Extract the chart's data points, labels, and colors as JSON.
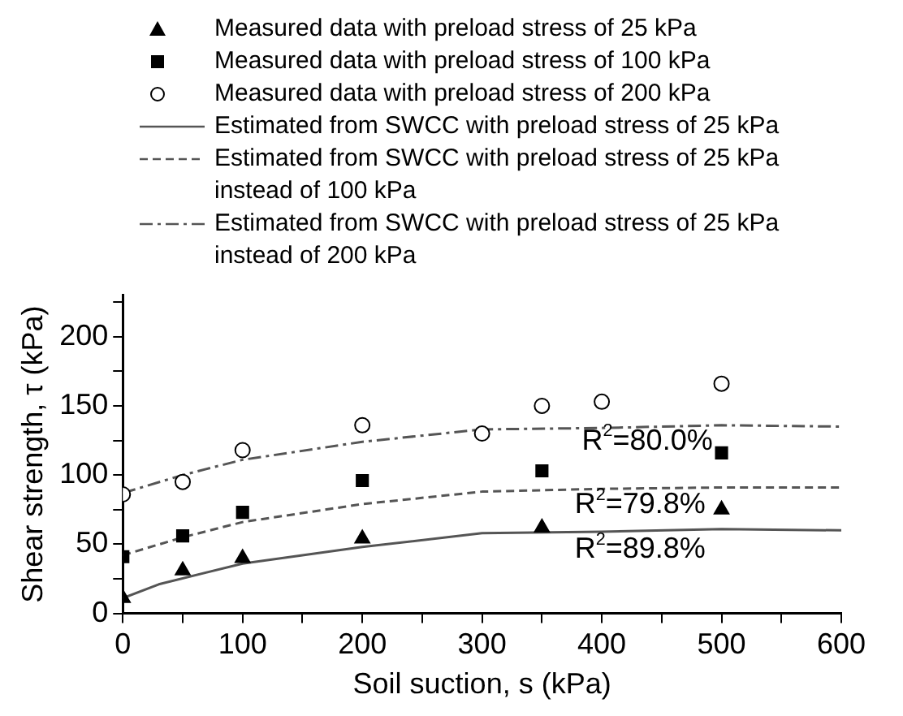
{
  "chart_data": {
    "type": "line",
    "xlabel": "Soil suction, s (kPa)",
    "ylabel": "Shear strength, τ (kPa)",
    "xlim": [
      0,
      600
    ],
    "xticks": [
      0,
      {
        "value": 50,
        "label": null
      },
      100,
      {
        "value": 150,
        "label": null
      },
      200,
      {
        "value": 250,
        "label": null
      },
      300,
      {
        "value": 350,
        "label": null
      },
      400,
      {
        "value": 450,
        "label": null
      },
      500,
      {
        "value": 550,
        "label": null
      },
      600
    ],
    "ylim": [
      0,
      230
    ],
    "yticks": [
      0,
      {
        "value": 25,
        "label": null
      },
      50,
      {
        "value": 75,
        "label": null
      },
      100,
      {
        "value": 125,
        "label": null
      },
      150,
      {
        "value": 175,
        "label": null
      },
      200,
      {
        "value": 225,
        "label": null
      }
    ],
    "grid": false,
    "legend": "top",
    "series": [
      {
        "name": "Measured data with preload stress of 25 kPa",
        "type": "scatter",
        "marker": "triangle",
        "color": "#000000",
        "x": [
          0,
          50,
          100,
          200,
          350,
          500
        ],
        "values": [
          11,
          31,
          40,
          54,
          62,
          75
        ]
      },
      {
        "name": "Measured data with preload stress of 100 kPa",
        "type": "scatter",
        "marker": "square",
        "color": "#000000",
        "x": [
          0,
          50,
          100,
          200,
          350,
          500
        ],
        "values": [
          41,
          56,
          73,
          96,
          103,
          116
        ]
      },
      {
        "name": "Measured data with preload stress of 200 kPa",
        "type": "scatter",
        "marker": "circle",
        "color": "#000000",
        "x": [
          0,
          50,
          100,
          200,
          300,
          350,
          400,
          500
        ],
        "values": [
          86,
          95,
          118,
          136,
          130,
          150,
          153,
          166
        ]
      },
      {
        "name": "Estimated from SWCC with preload stress of 25 kPa",
        "type": "line",
        "line_style": "solid",
        "color": "#555555",
        "x": [
          0,
          30,
          100,
          200,
          300,
          400,
          500,
          600
        ],
        "values": [
          11,
          21,
          36,
          48,
          58,
          59,
          61,
          60
        ]
      },
      {
        "name": "Estimated from SWCC with preload stress of 25 kPa instead of 100 kPa",
        "type": "line",
        "line_style": "dashed",
        "color": "#555555",
        "x": [
          0,
          50,
          100,
          200,
          300,
          400,
          500,
          600
        ],
        "values": [
          42,
          55,
          66,
          79,
          88,
          90,
          91,
          91
        ]
      },
      {
        "name": "Estimated from SWCC with preload stress of 25 kPa instead of 200 kPa",
        "type": "line",
        "line_style": "dashdot",
        "color": "#555555",
        "x": [
          0,
          50,
          100,
          200,
          300,
          400,
          500,
          600
        ],
        "values": [
          87,
          100,
          111,
          124,
          133,
          134,
          136,
          135
        ]
      }
    ],
    "annotations": [
      "R$^{2}$=80.0%",
      "R$^{2}$=79.8%",
      "R$^{2}$=89.8%"
    ]
  }
}
